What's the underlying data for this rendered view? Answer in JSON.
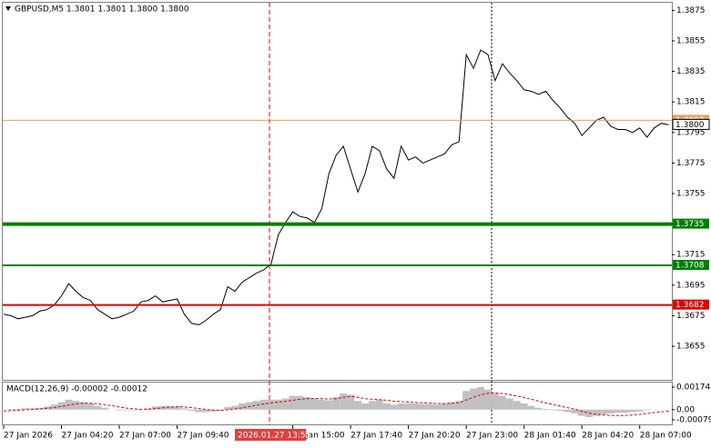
{
  "chart_data": [
    {
      "type": "line",
      "title": "GBPUSD,M5  1.3801 1.3801 1.3800 1.3800",
      "color": "#000000",
      "categories": [
        "27 Jan 2026",
        null,
        null,
        null,
        null,
        null,
        null,
        null,
        "27 Jan 04:20",
        null,
        null,
        null,
        null,
        null,
        null,
        null,
        "27 Jan 07:00",
        null,
        null,
        null,
        null,
        null,
        null,
        null,
        "27 Jan 09:40",
        null,
        null,
        null,
        null,
        null,
        null,
        null,
        null,
        null,
        null,
        null,
        null,
        null,
        null,
        null,
        "27 Jan 15:00",
        null,
        null,
        null,
        null,
        null,
        null,
        null,
        "27 Jan 17:40",
        null,
        null,
        null,
        null,
        null,
        null,
        null,
        "27 Jan 20:20",
        null,
        null,
        null,
        null,
        null,
        null,
        null,
        "27 Jan 23:00",
        null,
        null,
        null,
        null,
        null,
        null,
        null,
        "28 Jan 01:40",
        null,
        null,
        null,
        null,
        null,
        null,
        null,
        "28 Jan 04:20",
        null,
        null,
        null,
        null,
        null,
        null,
        null,
        "28 Jan 07:00",
        null,
        null,
        null,
        null
      ],
      "values": [
        1.3676,
        1.3675,
        1.3673,
        1.3674,
        1.3675,
        1.3678,
        1.3679,
        1.3682,
        1.3688,
        1.3696,
        1.3691,
        1.3687,
        1.3685,
        1.3679,
        1.3676,
        1.3673,
        1.3674,
        1.3676,
        1.3678,
        1.3684,
        1.3685,
        1.3688,
        1.3684,
        1.3685,
        1.3686,
        1.3676,
        1.367,
        1.3669,
        1.3672,
        1.3676,
        1.3679,
        1.3694,
        1.3691,
        1.3697,
        1.37,
        1.3703,
        1.3705,
        1.3709,
        1.3728,
        1.3736,
        1.3743,
        1.374,
        1.3739,
        1.3736,
        1.3745,
        1.3768,
        1.378,
        1.3786,
        1.3771,
        1.3756,
        1.3768,
        1.3786,
        1.3783,
        1.3771,
        1.3765,
        1.3786,
        1.3777,
        1.3779,
        1.3775,
        1.3777,
        1.3779,
        1.3781,
        1.3787,
        1.3789,
        1.3846,
        1.3837,
        1.3849,
        1.3846,
        1.3829,
        1.384,
        1.3834,
        1.3829,
        1.3823,
        1.3822,
        1.382,
        1.3822,
        1.3816,
        1.3811,
        1.3805,
        1.3801,
        1.3793,
        1.3798,
        1.3803,
        1.3805,
        1.3799,
        1.3797,
        1.3797,
        1.3795,
        1.3798,
        1.3792,
        1.3798,
        1.3801,
        1.38
      ],
      "ylim": [
        1.3633,
        1.388
      ],
      "yticks": [
        1.3875,
        1.3855,
        1.3835,
        1.3815,
        {
          "value": 1.3795,
          "label": "1.3795"
        },
        1.3775,
        1.3755,
        1.3735,
        1.3715,
        1.3695,
        1.3675,
        1.3655
      ],
      "levels": [
        {
          "value": 1.3803,
          "color": "#e8a060"
        },
        {
          "value": 1.3735,
          "color": "#008000"
        },
        {
          "value": 1.3708,
          "color": "#008000"
        },
        {
          "value": 1.3682,
          "color": "#e00000"
        }
      ],
      "price_line": {
        "value": 1.38,
        "label": "1.3800"
      },
      "cursor_label": "2026.01.27 13:55"
    },
    {
      "type": "macd",
      "title": "MACD(12,26,9) -0.00002 -0.00012",
      "histogram": {
        "color": "#c0c0c0",
        "values": [
          0,
          5e-05,
          5e-05,
          0.0001,
          0.0001,
          0.00014,
          0.00024,
          0.00038,
          0.00058,
          0.00077,
          0.00067,
          0.00058,
          0.00048,
          0.00029,
          0.00014,
          0,
          -5e-05,
          -5e-05,
          -5e-05,
          0,
          0.0001,
          0.00024,
          0.00029,
          0.00029,
          0.00024,
          0.0001,
          -0.0001,
          -0.00019,
          -0.00019,
          -0.00014,
          -0.0001,
          0.00019,
          0.00029,
          0.00048,
          0.00058,
          0.00067,
          0.00077,
          0.00077,
          0.00077,
          0.00086,
          0.00106,
          0.00106,
          0.00096,
          0.00086,
          0.00077,
          0.00072,
          0.00096,
          0.00125,
          0.00115,
          0.00067,
          0.00048,
          0.00067,
          0.00077,
          0.00048,
          0.00038,
          0.00048,
          0.00048,
          0.00048,
          0.00043,
          0.00043,
          0.00038,
          0.00048,
          0.00058,
          0.00067,
          0.00144,
          0.00163,
          0.00174,
          0.00154,
          0.00125,
          0.00106,
          0.00086,
          0.00067,
          0.00048,
          0.00029,
          0.00014,
          5e-05,
          -5e-05,
          -0.0001,
          -0.00019,
          -0.00029,
          -0.00048,
          -0.00058,
          -0.00048,
          -0.00038,
          -0.00029,
          -0.00024,
          -0.00024,
          -0.00019,
          -0.00014,
          -5e-05,
          0,
          0,
          -2e-05
        ]
      },
      "signal": {
        "color": "#e00000",
        "values": [
          -0.0001,
          -8e-05,
          -5e-05,
          -2e-05,
          2e-05,
          5e-05,
          0.0001,
          0.00016,
          0.00025,
          0.00035,
          0.00045,
          0.0005,
          0.0005,
          0.00045,
          0.00038,
          0.0003,
          0.0002,
          0.00012,
          6e-05,
          2e-05,
          3e-05,
          8e-05,
          0.00014,
          0.00019,
          0.00022,
          0.00021,
          0.00015,
          8e-05,
          1e-05,
          -4e-05,
          -6e-05,
          -2e-05,
          5e-05,
          0.00014,
          0.00024,
          0.00034,
          0.00044,
          0.00052,
          0.00058,
          0.00064,
          0.00072,
          0.0008,
          0.00085,
          0.00086,
          0.00085,
          0.00082,
          0.00085,
          0.00095,
          0.00102,
          0.00095,
          0.00085,
          0.0008,
          0.00078,
          0.00072,
          0.00065,
          0.00062,
          0.00058,
          0.00055,
          0.00052,
          0.0005,
          0.00047,
          0.00047,
          0.00049,
          0.00053,
          0.00075,
          0.00095,
          0.00115,
          0.00126,
          0.00128,
          0.00124,
          0.00116,
          0.00106,
          0.00094,
          0.0008,
          0.00066,
          0.00052,
          0.00039,
          0.00027,
          0.00015,
          3e-05,
          -0.00012,
          -0.00026,
          -0.00036,
          -0.00042,
          -0.00045,
          -0.00046,
          -0.00045,
          -0.00042,
          -0.00037,
          -0.0003,
          -0.00023,
          -0.00017,
          -0.00012
        ]
      },
      "ylim": [
        -0.00079,
        0.00174
      ],
      "yticks": [
        {
          "value": 0.00174,
          "label": "0.00174"
        },
        {
          "value": 0,
          "label": "0.00"
        },
        {
          "value": -0.00079,
          "label": "-0.00079"
        }
      ]
    }
  ]
}
